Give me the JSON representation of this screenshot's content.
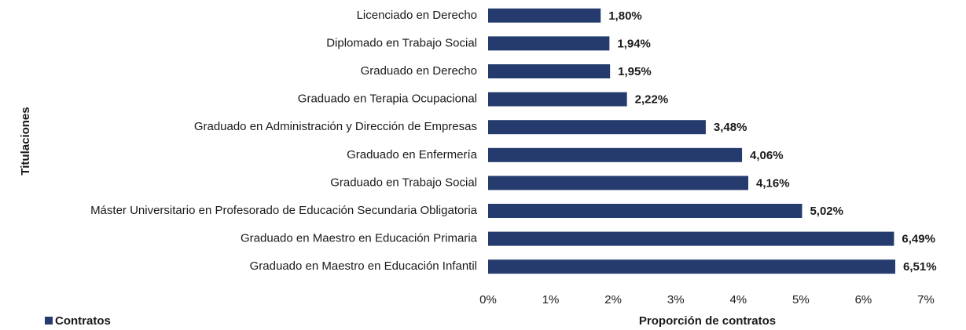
{
  "chart_data": {
    "type": "bar",
    "orientation": "horizontal",
    "x_axis_label": "Proporción de contratos",
    "y_axis_label": "Titulaciones",
    "categories": [
      "Licenciado en Derecho",
      "Diplomado en Trabajo Social",
      "Graduado en Derecho",
      "Graduado en Terapia Ocupacional",
      "Graduado en Administración y Dirección de Empresas",
      "Graduado en Enfermería",
      "Graduado en Trabajo Social",
      "Máster Universitario en Profesorado de Educación Secundaria Obligatoria",
      "Graduado en Maestro en Educación Primaria",
      "Graduado en Maestro en Educación Infantil"
    ],
    "series": [
      {
        "name": "Contratos",
        "color": "#253b6e",
        "values": [
          1.8,
          1.94,
          1.95,
          2.22,
          3.48,
          4.06,
          4.16,
          5.02,
          6.49,
          6.51
        ],
        "value_labels": [
          "1,80%",
          "1,94%",
          "1,95%",
          "2,22%",
          "3,48%",
          "4,06%",
          "4,16%",
          "5,02%",
          "6,49%",
          "6,51%"
        ]
      }
    ],
    "xlim": [
      0,
      7
    ],
    "xticks": [
      {
        "value": 0,
        "label": "0%"
      },
      {
        "value": 1,
        "label": "1%"
      },
      {
        "value": 2,
        "label": "2%"
      },
      {
        "value": 3,
        "label": "3%"
      },
      {
        "value": 4,
        "label": "4%"
      },
      {
        "value": 5,
        "label": "5%"
      },
      {
        "value": 6,
        "label": "6%"
      },
      {
        "value": 7,
        "label": "7%"
      }
    ],
    "grid": false,
    "legend": "bottom-left"
  }
}
